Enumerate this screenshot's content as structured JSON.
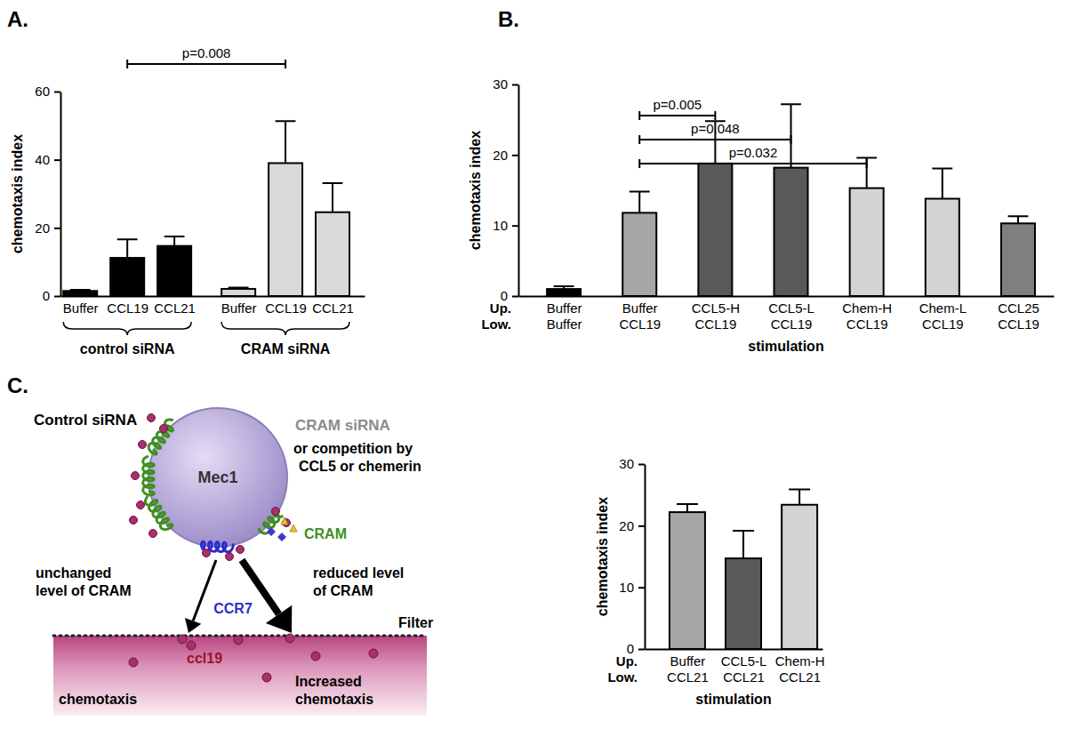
{
  "chart_data": [
    {
      "type": "bar",
      "title": "A.",
      "y_label": "chemotaxis index",
      "categories": [
        "Buffer",
        "CCL19",
        "CCL21",
        "Buffer",
        "CCL19",
        "CCL21"
      ],
      "values": [
        1.5,
        11.2,
        14.7,
        2.1,
        39.0,
        24.6
      ],
      "errors": [
        0.3,
        5.4,
        2.8,
        0.4,
        12.3,
        8.5
      ],
      "colors": [
        "#000000",
        "#000000",
        "#000000",
        "#d9d9d9",
        "#d9d9d9",
        "#d9d9d9"
      ],
      "groups": [
        {
          "label": "control siRNA",
          "from": 0,
          "to": 2
        },
        {
          "label": "CRAM siRNA",
          "from": 3,
          "to": 5
        }
      ],
      "annotations": [
        {
          "text": "p=0.008",
          "from": 1,
          "to": 4
        }
      ],
      "ylim": [
        0,
        60
      ],
      "yticks": [
        0,
        20,
        40,
        60
      ]
    },
    {
      "type": "bar",
      "title": "B.",
      "y_label": "chemotaxis index",
      "x_label": "stimulation",
      "row_labels": [
        "Up.",
        "Low."
      ],
      "categories": [
        "Buffer",
        "Buffer",
        "CCL5-H",
        "CCL5-L",
        "Chem-H",
        "Chem-L",
        "CCL25"
      ],
      "categories_lower": [
        "Buffer",
        "CCL19",
        "CCL19",
        "CCL19",
        "CCL19",
        "CCL19",
        "CCL19"
      ],
      "values": [
        1.0,
        11.8,
        18.8,
        18.2,
        15.3,
        13.8,
        10.3
      ],
      "errors": [
        0.4,
        3.0,
        6.0,
        9.0,
        4.3,
        4.3,
        1.0
      ],
      "colors": [
        "#000000",
        "#a6a6a6",
        "#595959",
        "#595959",
        "#d3d3d3",
        "#d3d3d3",
        "#7f7f7f"
      ],
      "annotations": [
        {
          "text": "p=0.005",
          "from": 1,
          "to": 2
        },
        {
          "text": "p=0.048",
          "from": 1,
          "to": 3
        },
        {
          "text": "p=0.032",
          "from": 1,
          "to": 4
        }
      ],
      "ylim": [
        0,
        30
      ],
      "yticks": [
        0,
        10,
        20,
        30
      ]
    },
    {
      "type": "bar",
      "y_label": "chemotaxis index",
      "x_label": "stimulation",
      "row_labels": [
        "Up.",
        "Low."
      ],
      "categories": [
        "Buffer",
        "CCL5-L",
        "Chem-H"
      ],
      "categories_lower": [
        "CCL21",
        "CCL21",
        "CCL21"
      ],
      "values": [
        22.2,
        14.7,
        23.4
      ],
      "errors": [
        1.3,
        4.5,
        2.5
      ],
      "colors": [
        "#a6a6a6",
        "#595959",
        "#d3d3d3"
      ],
      "ylim": [
        0,
        30
      ],
      "yticks": [
        0,
        10,
        20,
        30
      ]
    }
  ],
  "diagram": {
    "title": "C.",
    "cell": "Mec1",
    "receptor": "CRAM",
    "chemokine_receptor": "CCR7",
    "chemokine": "ccl19",
    "filter": "Filter",
    "left": {
      "condition": "Control siRNA",
      "cram_level": [
        "unchanged",
        "level of CRAM"
      ],
      "outcome": [
        "chemotaxis"
      ]
    },
    "right": {
      "condition": "CRAM siRNA",
      "condition_note": [
        "or competition by",
        "CCL5 or chemerin"
      ],
      "cram_level": [
        "reduced level",
        "of CRAM"
      ],
      "outcome": [
        "Increased",
        "chemotaxis"
      ]
    }
  }
}
